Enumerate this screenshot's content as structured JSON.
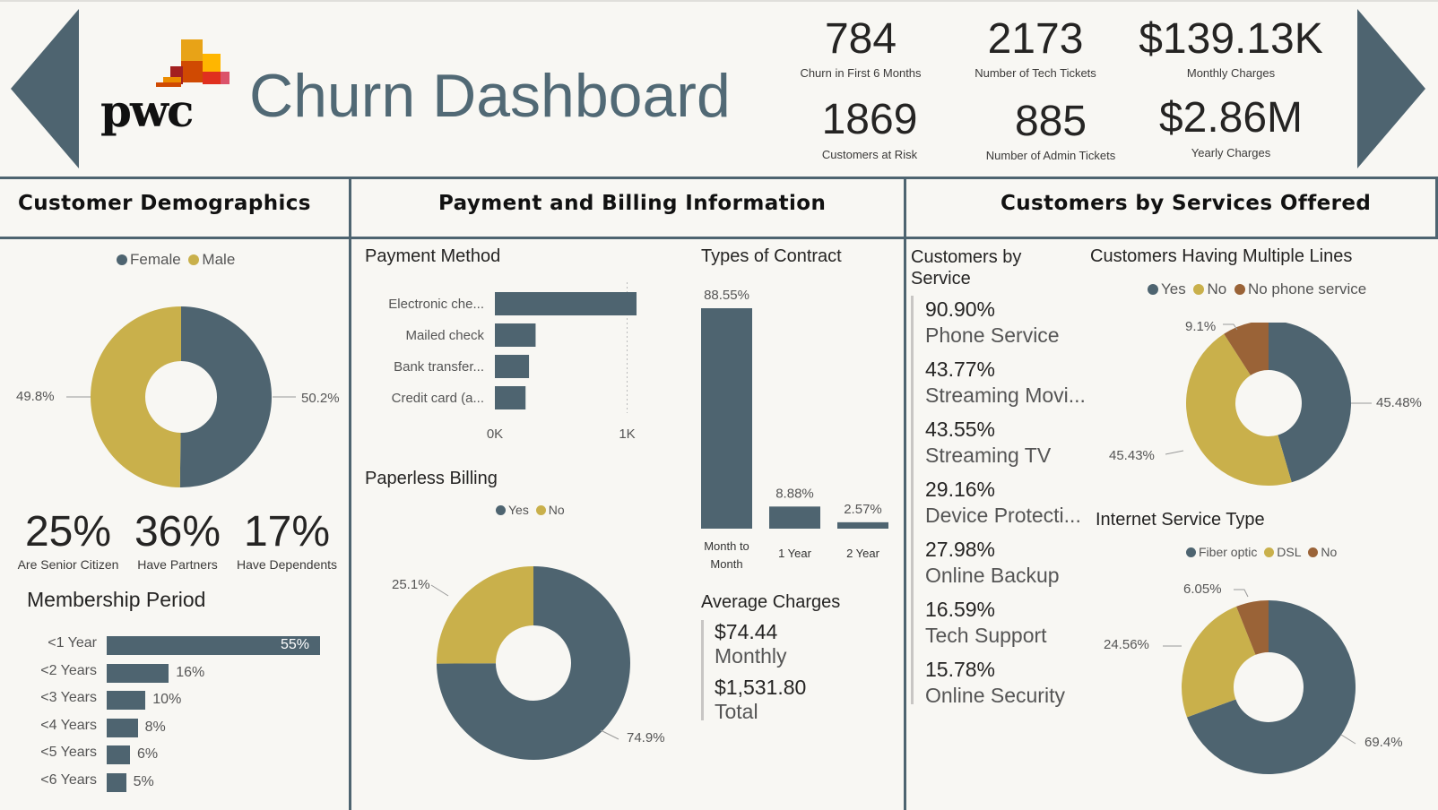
{
  "header": {
    "title": "Churn Dashboard",
    "logo_text": "pwc",
    "kpis": [
      {
        "value": "784",
        "label": "Churn in First 6 Months"
      },
      {
        "value": "2173",
        "label": "Number of Tech Tickets"
      },
      {
        "value": "$139.13K",
        "label": "Monthly Charges"
      },
      {
        "value": "1869",
        "label": "Customers at Risk"
      },
      {
        "value": "885",
        "label": "Number of Admin Tickets"
      },
      {
        "value": "$2.86M",
        "label": "Yearly Charges"
      }
    ]
  },
  "colors": {
    "primary": "#4e6470",
    "gold": "#c9b04b",
    "brown": "#9a6337",
    "border": "#4e6470"
  },
  "demographics": {
    "section_title": "Customer Demographics",
    "legend": [
      {
        "label": "Female",
        "color": "#4e6470"
      },
      {
        "label": "Male",
        "color": "#c9b04b"
      }
    ],
    "gender_labels": {
      "left": "49.8%",
      "right": "50.2%"
    },
    "stats": [
      {
        "value": "25%",
        "label": "Are Senior Citizen"
      },
      {
        "value": "36%",
        "label": "Have Partners"
      },
      {
        "value": "17%",
        "label": "Have Dependents"
      }
    ],
    "membership_title": "Membership Period"
  },
  "payment": {
    "section_title": "Payment and Billing Information",
    "method_title": "Payment Method",
    "method_axis": [
      "0K",
      "1K"
    ],
    "paperless_title": "Paperless Billing",
    "paperless_legend": [
      {
        "label": "Yes",
        "color": "#4e6470"
      },
      {
        "label": "No",
        "color": "#c9b04b"
      }
    ],
    "paperless_labels": {
      "no": "25.1%",
      "yes": "74.9%"
    },
    "contract_title": "Types of Contract",
    "avg_title": "Average Charges",
    "avg_monthly_value": "$74.44",
    "avg_monthly_label": "Monthly",
    "avg_total_value": "$1,531.80",
    "avg_total_label": "Total"
  },
  "services": {
    "section_title": "Customers by Services Offered",
    "by_service_title": "Customers by Service",
    "items": [
      {
        "pct": "90.90%",
        "label": "Phone Service"
      },
      {
        "pct": "43.77%",
        "label": "Streaming Movi..."
      },
      {
        "pct": "43.55%",
        "label": "Streaming TV"
      },
      {
        "pct": "29.16%",
        "label": "Device Protecti..."
      },
      {
        "pct": "27.98%",
        "label": "Online Backup"
      },
      {
        "pct": "16.59%",
        "label": "Tech Support"
      },
      {
        "pct": "15.78%",
        "label": "Online Security"
      }
    ],
    "multiple_lines_title": "Customers Having Multiple Lines",
    "multiple_lines_legend": [
      {
        "label": "Yes",
        "color": "#4e6470"
      },
      {
        "label": "No",
        "color": "#c9b04b"
      },
      {
        "label": "No phone service",
        "color": "#9a6337"
      }
    ],
    "multiple_lines_labels": {
      "np": "9.1%",
      "yes": "45.48%",
      "no": "45.43%"
    },
    "internet_title": "Internet Service Type",
    "internet_legend": [
      {
        "label": "Fiber optic",
        "color": "#4e6470"
      },
      {
        "label": "DSL",
        "color": "#c9b04b"
      },
      {
        "label": "No",
        "color": "#9a6337"
      }
    ],
    "internet_labels": {
      "no": "6.05%",
      "dsl": "24.56%",
      "fiber": "69.4%"
    }
  },
  "chart_data": [
    {
      "type": "pie",
      "title": "",
      "labels": [
        "Female",
        "Male"
      ],
      "values": [
        50.2,
        49.8
      ],
      "colors": [
        "#4e6470",
        "#c9b04b"
      ]
    },
    {
      "type": "bar",
      "title": "Membership Period",
      "orientation": "horizontal",
      "categories": [
        "<1 Year",
        "<2 Years",
        "<3 Years",
        "<4 Years",
        "<5 Years",
        "<6 Years"
      ],
      "values": [
        55,
        16,
        10,
        8,
        6,
        5
      ],
      "value_labels": [
        "55%",
        "16%",
        "10%",
        "8%",
        "6%",
        "5%"
      ]
    },
    {
      "type": "bar",
      "title": "Payment Method",
      "orientation": "horizontal",
      "categories": [
        "Electronic che...",
        "Mailed check",
        "Bank transfer...",
        "Credit card (a..."
      ],
      "values": [
        1071,
        308,
        258,
        232
      ],
      "xlim": [
        0,
        1071
      ],
      "xticks": [
        "0K",
        "1K"
      ]
    },
    {
      "type": "pie",
      "title": "Paperless Billing",
      "labels": [
        "Yes",
        "No"
      ],
      "values": [
        74.9,
        25.1
      ],
      "colors": [
        "#4e6470",
        "#c9b04b"
      ]
    },
    {
      "type": "bar",
      "title": "Types of Contract",
      "categories": [
        "Month to Month",
        "1 Year",
        "2 Year"
      ],
      "values": [
        88.55,
        8.88,
        2.57
      ],
      "value_labels": [
        "88.55%",
        "8.88%",
        "2.57%"
      ]
    },
    {
      "type": "pie",
      "title": "Customers Having Multiple Lines",
      "labels": [
        "Yes",
        "No",
        "No phone service"
      ],
      "values": [
        45.48,
        45.43,
        9.1
      ],
      "colors": [
        "#4e6470",
        "#c9b04b",
        "#9a6337"
      ]
    },
    {
      "type": "pie",
      "title": "Internet Service Type",
      "labels": [
        "Fiber optic",
        "DSL",
        "No"
      ],
      "values": [
        69.4,
        24.56,
        6.05
      ],
      "colors": [
        "#4e6470",
        "#c9b04b",
        "#9a6337"
      ]
    }
  ]
}
